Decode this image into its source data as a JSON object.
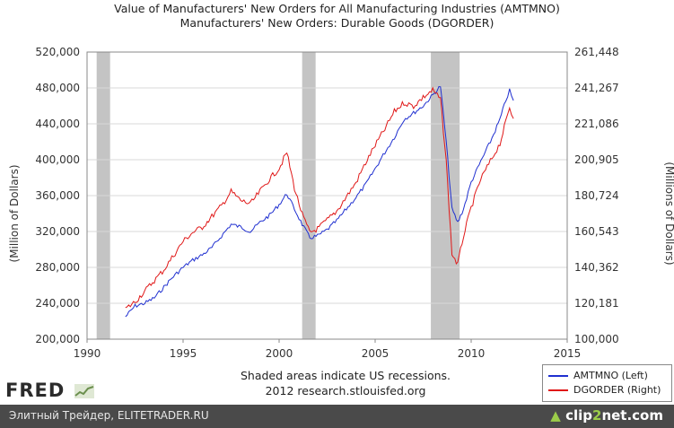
{
  "chart_data": {
    "type": "line",
    "title": "Value of Manufacturers' New Orders for All Manufacturing Industries (AMTMNO)",
    "subtitle": "Manufacturers' New Orders: Durable Goods (DGORDER)",
    "ylabel_left": "(Million of Dollars)",
    "ylabel_right": "(Millions of Dollars)",
    "xlim": [
      1990,
      2015
    ],
    "ylim_left": [
      200000,
      520000
    ],
    "ylim_right": [
      100000,
      261448
    ],
    "x_ticks": [
      "1990",
      "1995",
      "2000",
      "2005",
      "2010",
      "2015"
    ],
    "y_ticks_left": [
      "200,000",
      "240,000",
      "280,000",
      "320,000",
      "360,000",
      "400,000",
      "440,000",
      "480,000",
      "520,000"
    ],
    "y_ticks_right": [
      "100,000",
      "120,181",
      "140,362",
      "160,543",
      "180,724",
      "200,905",
      "221,086",
      "241,267",
      "261,448"
    ],
    "recessions": [
      [
        1990.5,
        1991.2
      ],
      [
        2001.2,
        2001.9
      ],
      [
        2007.9,
        2009.4
      ]
    ],
    "series": [
      {
        "name": "AMTMNO (Left)",
        "color": "#1f2fd0",
        "x": [
          1992.0,
          1992.5,
          1993.0,
          1993.5,
          1994.0,
          1994.5,
          1995.0,
          1995.5,
          1996.0,
          1996.5,
          1997.0,
          1997.5,
          1998.0,
          1998.5,
          1999.0,
          1999.5,
          2000.0,
          2000.4,
          2000.8,
          2001.2,
          2001.6,
          2002.0,
          2002.5,
          2003.0,
          2003.5,
          2004.0,
          2004.5,
          2005.0,
          2005.5,
          2006.0,
          2006.5,
          2007.0,
          2007.5,
          2008.0,
          2008.4,
          2008.7,
          2009.0,
          2009.3,
          2009.6,
          2010.0,
          2010.5,
          2011.0,
          2011.5,
          2011.8,
          2012.0,
          2012.2
        ],
        "values": [
          225000,
          237000,
          240000,
          246000,
          258000,
          270000,
          280000,
          288000,
          294000,
          302000,
          315000,
          328000,
          325000,
          320000,
          330000,
          338000,
          350000,
          362000,
          345000,
          328000,
          313000,
          315000,
          322000,
          332000,
          345000,
          358000,
          372000,
          390000,
          408000,
          425000,
          445000,
          452000,
          460000,
          472000,
          482000,
          420000,
          345000,
          330000,
          345000,
          375000,
          398000,
          420000,
          445000,
          466000,
          477000,
          466000
        ]
      },
      {
        "name": "DGORDER (Right)",
        "color": "#e01818",
        "x": [
          1992.0,
          1992.5,
          1993.0,
          1993.5,
          1994.0,
          1994.5,
          1995.0,
          1995.5,
          1996.0,
          1996.5,
          1997.0,
          1997.5,
          1998.0,
          1998.5,
          1999.0,
          1999.5,
          2000.0,
          2000.4,
          2000.8,
          2001.2,
          2001.6,
          2002.0,
          2002.5,
          2003.0,
          2003.5,
          2004.0,
          2004.5,
          2005.0,
          2005.5,
          2006.0,
          2006.5,
          2007.0,
          2007.5,
          2008.0,
          2008.4,
          2008.7,
          2009.0,
          2009.3,
          2009.6,
          2010.0,
          2010.5,
          2011.0,
          2011.5,
          2011.8,
          2012.0,
          2012.2
        ],
        "values": [
          117000,
          121000,
          127000,
          133000,
          139000,
          147000,
          155000,
          160000,
          163000,
          169000,
          175000,
          183000,
          178000,
          176000,
          183000,
          190000,
          196000,
          205000,
          185000,
          170000,
          160000,
          162000,
          167000,
          172000,
          180000,
          188000,
          199000,
          209000,
          218000,
          228000,
          233000,
          231000,
          236000,
          240000,
          235000,
          200000,
          148000,
          142000,
          158000,
          174000,
          190000,
          200000,
          210000,
          222000,
          230000,
          224000
        ]
      }
    ],
    "legend": [
      "AMTMNO (Left)",
      "DGORDER (Right)"
    ],
    "annotations": [
      "Shaded areas indicate US recessions.",
      "2012 research.stlouisfed.org"
    ]
  },
  "logo_text": "FRED",
  "footer": {
    "left_text": "Элитный Трейдер, ELITETRADER.RU",
    "right_text_a": "clip",
    "right_text_b": "2",
    "right_text_c": "net.com"
  }
}
